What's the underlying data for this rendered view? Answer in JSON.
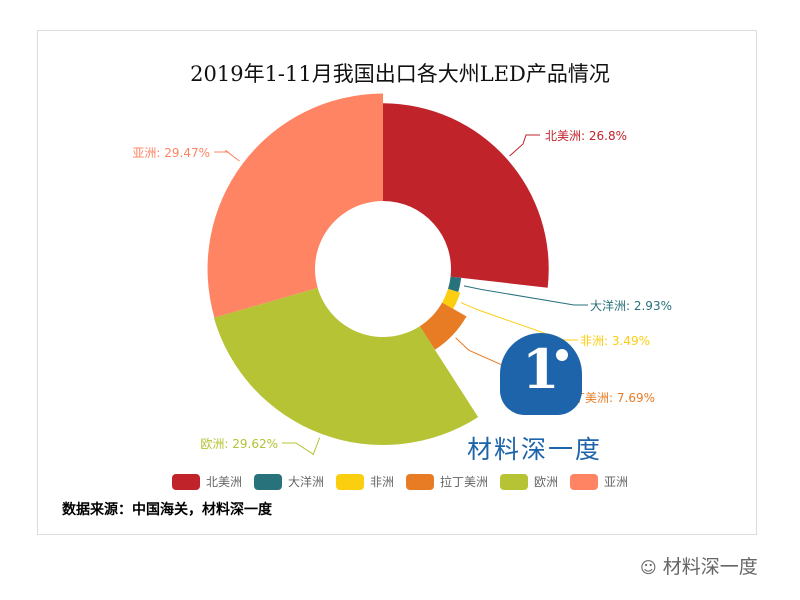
{
  "chart_data": {
    "type": "pie",
    "variant": "rose-donut",
    "title": "2019年1-11月我国出口各大州LED产品情况",
    "slices": [
      {
        "name": "北美洲",
        "value": 26.8,
        "label": "北美洲: 26.8%",
        "color": "#c1232b"
      },
      {
        "name": "大洋洲",
        "value": 2.93,
        "label": "大洋洲: 2.93%",
        "color": "#27727b"
      },
      {
        "name": "非洲",
        "value": 3.49,
        "label": "非洲: 3.49%",
        "color": "#fcce10"
      },
      {
        "name": "拉丁美洲",
        "value": 7.69,
        "label": "拉丁美洲: 7.69%",
        "color": "#e87c25"
      },
      {
        "name": "欧洲",
        "value": 29.62,
        "label": "欧洲: 29.62%",
        "color": "#b5c334"
      },
      {
        "name": "亚洲",
        "value": 29.47,
        "label": "亚洲: 29.47%",
        "color": "#fe8463"
      }
    ],
    "legend_position": "bottom"
  },
  "source": "数据来源：中国海关，材料深一度",
  "logo": {
    "mark": "1",
    "brand": "材料深一度"
  },
  "watermark": "材料深一度"
}
